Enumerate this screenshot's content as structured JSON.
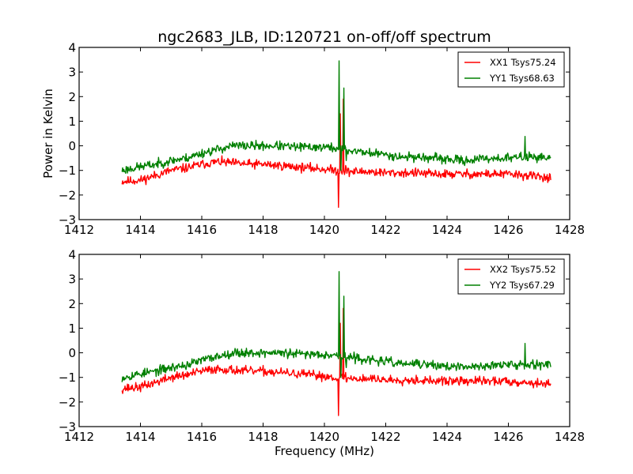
{
  "figure": {
    "title": "ngc2683_JLB, ID:120721 on-off/off spectrum"
  },
  "chart_data": [
    {
      "type": "line",
      "title": "ngc2683_JLB, ID:120721 on-off/off spectrum",
      "xlabel": "",
      "ylabel": "Power in Kelvin",
      "xlim": [
        1412,
        1428
      ],
      "ylim": [
        -3,
        4
      ],
      "xticks": [
        "1412",
        "1414",
        "1416",
        "1418",
        "1420",
        "1422",
        "1424",
        "1426",
        "1428"
      ],
      "yticks": [
        "−3",
        "−2",
        "−1",
        "0",
        "1",
        "2",
        "3",
        "4"
      ],
      "legend_position": "top-right",
      "x_range": [
        1413.4,
        1427.4
      ],
      "baseline_x": [
        1413.4,
        1414.0,
        1414.5,
        1415.0,
        1415.5,
        1416.0,
        1416.5,
        1417.0,
        1417.5,
        1418.0,
        1418.5,
        1419.0,
        1419.5,
        1420.0,
        1420.4,
        1420.8,
        1421.0,
        1421.5,
        1422.0,
        1422.5,
        1423.0,
        1423.5,
        1424.0,
        1424.5,
        1425.0,
        1425.5,
        1426.0,
        1426.5,
        1427.0,
        1427.4
      ],
      "series": [
        {
          "name": "XX1 Tsys75.24",
          "color": "#ff0000",
          "baseline": [
            -1.45,
            -1.4,
            -1.2,
            -1.0,
            -0.9,
            -0.75,
            -0.65,
            -0.7,
            -0.75,
            -0.75,
            -0.8,
            -0.85,
            -0.9,
            -0.95,
            -1.0,
            -1.05,
            -1.05,
            -1.05,
            -1.1,
            -1.1,
            -1.1,
            -1.15,
            -1.15,
            -1.15,
            -1.15,
            -1.15,
            -1.15,
            -1.2,
            -1.25,
            -1.3
          ],
          "noise": 0.13,
          "seed": 11,
          "features": [
            {
              "x": 1420.45,
              "y": -2.5
            },
            {
              "x": 1420.52,
              "y": 1.3
            },
            {
              "x": 1420.62,
              "y": 1.9
            },
            {
              "x": 1420.7,
              "y": -0.8
            }
          ]
        },
        {
          "name": "YY1 Tsys68.63",
          "color": "#008000",
          "baseline": [
            -1.0,
            -0.85,
            -0.75,
            -0.6,
            -0.5,
            -0.3,
            -0.15,
            0.0,
            0.0,
            0.0,
            0.0,
            -0.05,
            -0.05,
            -0.05,
            -0.1,
            -0.2,
            -0.2,
            -0.3,
            -0.35,
            -0.45,
            -0.45,
            -0.5,
            -0.55,
            -0.6,
            -0.55,
            -0.5,
            -0.5,
            -0.45,
            -0.45,
            -0.5
          ],
          "noise": 0.13,
          "seed": 23,
          "features": [
            {
              "x": 1420.47,
              "y": 3.45
            },
            {
              "x": 1420.54,
              "y": -1.0
            },
            {
              "x": 1420.63,
              "y": 2.35
            },
            {
              "x": 1420.72,
              "y": -0.6
            },
            {
              "x": 1426.55,
              "y": 0.38
            }
          ]
        }
      ]
    },
    {
      "type": "line",
      "title": "",
      "xlabel": "Frequency (MHz)",
      "ylabel": "",
      "xlim": [
        1412,
        1428
      ],
      "ylim": [
        -3,
        4
      ],
      "xticks": [
        "1412",
        "1414",
        "1416",
        "1418",
        "1420",
        "1422",
        "1424",
        "1426",
        "1428"
      ],
      "yticks": [
        "−3",
        "−2",
        "−1",
        "0",
        "1",
        "2",
        "3",
        "4"
      ],
      "legend_position": "top-right",
      "x_range": [
        1413.4,
        1427.4
      ],
      "baseline_x": [
        1413.4,
        1414.0,
        1414.5,
        1415.0,
        1415.5,
        1416.0,
        1416.5,
        1417.0,
        1417.5,
        1418.0,
        1418.5,
        1419.0,
        1419.5,
        1420.0,
        1420.4,
        1420.8,
        1421.0,
        1421.5,
        1422.0,
        1422.5,
        1423.0,
        1423.5,
        1424.0,
        1424.5,
        1425.0,
        1425.5,
        1426.0,
        1426.5,
        1427.0,
        1427.4
      ],
      "series": [
        {
          "name": "XX2 Tsys75.52",
          "color": "#ff0000",
          "baseline": [
            -1.45,
            -1.4,
            -1.2,
            -1.0,
            -0.9,
            -0.75,
            -0.65,
            -0.7,
            -0.75,
            -0.75,
            -0.8,
            -0.85,
            -0.9,
            -0.95,
            -1.0,
            -1.05,
            -1.05,
            -1.05,
            -1.1,
            -1.1,
            -1.1,
            -1.15,
            -1.15,
            -1.15,
            -1.15,
            -1.15,
            -1.15,
            -1.2,
            -1.25,
            -1.3
          ],
          "noise": 0.13,
          "seed": 37,
          "features": [
            {
              "x": 1420.45,
              "y": -2.55
            },
            {
              "x": 1420.52,
              "y": 1.2
            },
            {
              "x": 1420.62,
              "y": 1.8
            },
            {
              "x": 1420.7,
              "y": -0.8
            }
          ]
        },
        {
          "name": "YY2 Tsys67.29",
          "color": "#008000",
          "baseline": [
            -1.0,
            -0.85,
            -0.75,
            -0.6,
            -0.5,
            -0.3,
            -0.15,
            0.0,
            0.0,
            0.0,
            0.0,
            -0.05,
            -0.05,
            -0.05,
            -0.1,
            -0.2,
            -0.2,
            -0.3,
            -0.35,
            -0.45,
            -0.45,
            -0.5,
            -0.55,
            -0.6,
            -0.55,
            -0.5,
            -0.5,
            -0.45,
            -0.45,
            -0.5
          ],
          "noise": 0.13,
          "seed": 53,
          "features": [
            {
              "x": 1420.47,
              "y": 3.3
            },
            {
              "x": 1420.54,
              "y": -1.0
            },
            {
              "x": 1420.63,
              "y": 2.3
            },
            {
              "x": 1420.72,
              "y": -0.6
            },
            {
              "x": 1426.55,
              "y": 0.38
            }
          ]
        }
      ]
    }
  ]
}
